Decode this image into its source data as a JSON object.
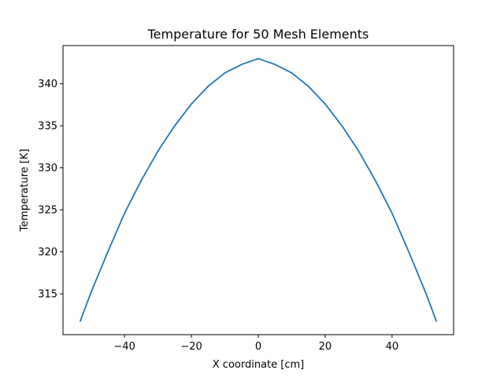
{
  "chart_data": {
    "type": "line",
    "title": "Temperature for 50 Mesh Elements",
    "xlabel": "X coordinate [cm]",
    "ylabel": "Temperature [K]",
    "xlim": [
      -58.4,
      58.4
    ],
    "ylim": [
      310.15,
      344.55
    ],
    "xticks": [
      -40,
      -20,
      0,
      20,
      40
    ],
    "xtick_labels": [
      "−40",
      "−20",
      "0",
      "20",
      "40"
    ],
    "yticks": [
      315,
      320,
      325,
      330,
      335,
      340
    ],
    "ytick_labels": [
      "315",
      "320",
      "325",
      "330",
      "335",
      "340"
    ],
    "grid": false,
    "legend": "none",
    "line_color": "#1f77b4",
    "series": [
      {
        "x": [
          -53.3,
          -50,
          -45,
          -40,
          -35,
          -30,
          -25,
          -20,
          -15,
          -10,
          -5,
          0,
          5,
          10,
          15,
          20,
          25,
          30,
          35,
          40,
          45,
          50,
          53.3
        ],
        "values": [
          311.7,
          315.2,
          320.0,
          324.6,
          328.5,
          332.0,
          335.0,
          337.6,
          339.7,
          341.3,
          342.3,
          343.0,
          342.3,
          341.3,
          339.7,
          337.6,
          335.0,
          332.0,
          328.5,
          324.6,
          320.0,
          315.2,
          311.7
        ]
      }
    ]
  }
}
